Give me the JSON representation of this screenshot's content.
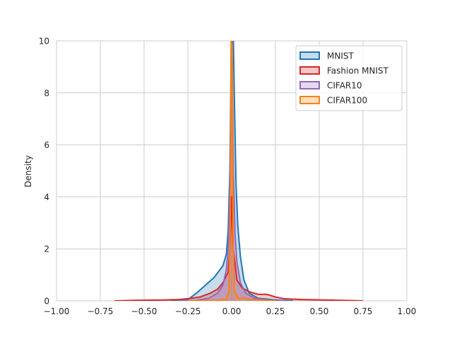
{
  "chart_data": {
    "type": "area",
    "title": "",
    "xlabel": "",
    "ylabel": "Density",
    "xlim": [
      -1.0,
      1.0
    ],
    "ylim": [
      0,
      10
    ],
    "grid": true,
    "legend_position": "top-right",
    "x_ticks": [
      {
        "value": -1.0,
        "label": "−1.00"
      },
      {
        "value": -0.75,
        "label": "−0.75"
      },
      {
        "value": -0.5,
        "label": "−0.50"
      },
      {
        "value": -0.25,
        "label": "−0.25"
      },
      {
        "value": 0.0,
        "label": "0.00"
      },
      {
        "value": 0.25,
        "label": "0.25"
      },
      {
        "value": 0.5,
        "label": "0.50"
      },
      {
        "value": 0.75,
        "label": "0.75"
      },
      {
        "value": 1.0,
        "label": "1.00"
      }
    ],
    "y_ticks": [
      {
        "value": 0,
        "label": "0"
      },
      {
        "value": 2,
        "label": "2"
      },
      {
        "value": 4,
        "label": "4"
      },
      {
        "value": 6,
        "label": "6"
      },
      {
        "value": 8,
        "label": "8"
      },
      {
        "value": 10,
        "label": "10"
      }
    ],
    "series": [
      {
        "name": "MNIST",
        "color": "#1f77b4",
        "points": [
          [
            -0.35,
            0
          ],
          [
            -0.25,
            0.05
          ],
          [
            -0.2,
            0.3
          ],
          [
            -0.15,
            0.6
          ],
          [
            -0.1,
            0.9
          ],
          [
            -0.05,
            1.35
          ],
          [
            -0.03,
            1.8
          ],
          [
            -0.02,
            2.7
          ],
          [
            -0.01,
            5.0
          ],
          [
            -0.005,
            8.0
          ],
          [
            0.0,
            12.0
          ],
          [
            0.005,
            12.0
          ],
          [
            0.015,
            8.0
          ],
          [
            0.025,
            4.5
          ],
          [
            0.035,
            2.9
          ],
          [
            0.05,
            1.7
          ],
          [
            0.07,
            0.8
          ],
          [
            0.1,
            0.3
          ],
          [
            0.15,
            0.1
          ],
          [
            0.25,
            0.03
          ],
          [
            0.35,
            0
          ]
        ]
      },
      {
        "name": "Fashion MNIST",
        "color": "#d62728",
        "points": [
          [
            -0.67,
            0
          ],
          [
            -0.55,
            0.02
          ],
          [
            -0.4,
            0.03
          ],
          [
            -0.3,
            0.05
          ],
          [
            -0.23,
            0.1
          ],
          [
            -0.18,
            0.15
          ],
          [
            -0.12,
            0.3
          ],
          [
            -0.08,
            0.45
          ],
          [
            -0.05,
            0.7
          ],
          [
            -0.02,
            1.1
          ],
          [
            -0.01,
            2.0
          ],
          [
            0.0,
            4.0
          ],
          [
            0.01,
            2.0
          ],
          [
            0.03,
            0.8
          ],
          [
            0.06,
            0.5
          ],
          [
            0.1,
            0.35
          ],
          [
            0.15,
            0.25
          ],
          [
            0.2,
            0.25
          ],
          [
            0.25,
            0.15
          ],
          [
            0.3,
            0.08
          ],
          [
            0.4,
            0.05
          ],
          [
            0.55,
            0.03
          ],
          [
            0.75,
            0
          ]
        ]
      },
      {
        "name": "CIFAR10",
        "color": "#9467bd",
        "points": [
          [
            -0.3,
            0
          ],
          [
            -0.2,
            0.02
          ],
          [
            -0.13,
            0.1
          ],
          [
            -0.08,
            0.3
          ],
          [
            -0.05,
            0.6
          ],
          [
            -0.03,
            1.2
          ],
          [
            -0.02,
            2.0
          ],
          [
            -0.01,
            4.0
          ],
          [
            -0.005,
            7.0
          ],
          [
            0.0,
            12.0
          ],
          [
            0.005,
            8.0
          ],
          [
            0.01,
            5.0
          ],
          [
            0.02,
            2.5
          ],
          [
            0.03,
            1.5
          ],
          [
            0.05,
            0.7
          ],
          [
            0.08,
            0.3
          ],
          [
            0.13,
            0.1
          ],
          [
            0.2,
            0.02
          ],
          [
            0.3,
            0
          ]
        ]
      },
      {
        "name": "CIFAR100",
        "color": "#ff7f0e",
        "points": [
          [
            -0.25,
            0
          ],
          [
            -0.1,
            0.02
          ],
          [
            -0.03,
            0.05
          ],
          [
            -0.015,
            0.4
          ],
          [
            -0.008,
            3.0
          ],
          [
            -0.003,
            9.0
          ],
          [
            0.0,
            12.0
          ],
          [
            0.003,
            9.0
          ],
          [
            0.008,
            3.0
          ],
          [
            0.015,
            0.4
          ],
          [
            0.04,
            0.08
          ],
          [
            0.07,
            0.12
          ],
          [
            0.1,
            0.06
          ],
          [
            0.2,
            0.02
          ],
          [
            0.25,
            0
          ]
        ]
      }
    ]
  }
}
